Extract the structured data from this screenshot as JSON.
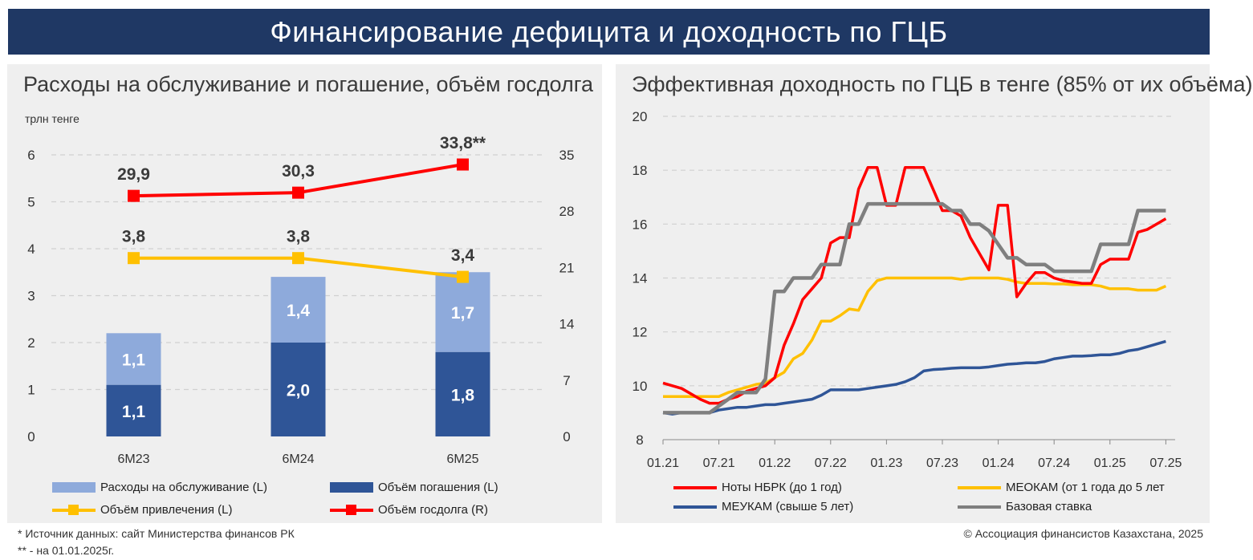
{
  "header": {
    "title": "Финансирование дефицита и доходность по ГЦБ"
  },
  "colors": {
    "banner": "#1f3864",
    "service": "#8eaadb",
    "repay": "#2f5597",
    "borrow": "#ffc000",
    "debt": "#ff0000",
    "notes": "#ff0000",
    "meokam": "#ffc000",
    "meukam": "#2f5597",
    "base": "#7f7f7f"
  },
  "left_panel": {
    "title": "Расходы на обслуживание и погашение, объём госдолга",
    "units": "трлн тенге",
    "legend": {
      "service": "Расходы на обслуживание (L)",
      "repay": "Объём погашения (L)",
      "borrow": "Объём привлечения (L)",
      "debt": "Объём госдолга (R)"
    }
  },
  "right_panel": {
    "title": "Эффективная доходность по ГЦБ в тенге (85% от их объёма)",
    "legend": {
      "notes": "Ноты НБРК (до 1 год)",
      "meokam": "МЕОКАМ (от 1 года до 5 лет",
      "meukam": "МЕУКАМ (свыше 5 лет)",
      "base": "Базовая ставка"
    }
  },
  "footnotes": {
    "source": "* Источник данных: сайт Министерства финансов РК",
    "date_note": "** - на 01.01.2025г.",
    "copyright": "© Ассоциация финансистов Казахстана, 2025"
  },
  "chart_data": [
    {
      "type": "bar",
      "title": "Расходы на обслуживание и погашение, объём госдолга",
      "ylabel": "трлн тенге",
      "categories": [
        "6M23",
        "6M24",
        "6M25"
      ],
      "ylim": [
        0,
        6
      ],
      "yticks": [
        "0",
        "1",
        "2",
        "3",
        "4",
        "5",
        "6"
      ],
      "y2lim": [
        0,
        35
      ],
      "y2ticks": [
        "0",
        "7",
        "14",
        "21",
        "28",
        "35"
      ],
      "stacked_series": [
        {
          "name": "Объём погашения (L)",
          "values": [
            1.1,
            2.0,
            1.8
          ],
          "labels": [
            "1,1",
            "2,0",
            "1,8"
          ]
        },
        {
          "name": "Расходы на обслуживание (L)",
          "values": [
            1.1,
            1.4,
            1.7
          ],
          "labels": [
            "1,1",
            "1,4",
            "1,7"
          ]
        }
      ],
      "line_series": [
        {
          "name": "Объём привлечения (L)",
          "axis": "left",
          "values": [
            3.8,
            3.8,
            3.4
          ],
          "labels": [
            "3,8",
            "3,8",
            "3,4"
          ]
        },
        {
          "name": "Объём госдолга (R)",
          "axis": "right",
          "values": [
            29.9,
            30.3,
            33.8
          ],
          "labels": [
            "29,9",
            "30,3",
            "33,8**"
          ]
        }
      ]
    },
    {
      "type": "line",
      "title": "Эффективная доходность по ГЦБ в тенге (85% от их объёма)",
      "xlabels": [
        "01.21",
        "07.21",
        "01.22",
        "07.22",
        "01.23",
        "07.23",
        "01.24",
        "07.24",
        "01.25",
        "07.25"
      ],
      "xlim": [
        0,
        55
      ],
      "ylim": [
        8,
        20
      ],
      "yticks": [
        "8",
        "10",
        "12",
        "14",
        "16",
        "18",
        "20"
      ],
      "series": [
        {
          "name": "Ноты НБРК (до 1 год)",
          "x": [
            0,
            1,
            2,
            3,
            4,
            5,
            6,
            7,
            8,
            9,
            10,
            11,
            12,
            13,
            14,
            15,
            16,
            17,
            18,
            19,
            20,
            21,
            22,
            23,
            24,
            25,
            26,
            27,
            28,
            29,
            30,
            31,
            32,
            33,
            34,
            35,
            36,
            37,
            38,
            39,
            40,
            41,
            42,
            43,
            44,
            45,
            46,
            47,
            48,
            49,
            50,
            51,
            52,
            53,
            54
          ],
          "values": [
            10.1,
            10.0,
            9.9,
            9.7,
            9.5,
            9.35,
            9.35,
            9.5,
            9.6,
            9.8,
            9.9,
            10.0,
            10.3,
            11.5,
            12.3,
            13.2,
            13.6,
            14.0,
            15.3,
            15.5,
            15.5,
            17.3,
            18.1,
            18.1,
            16.7,
            16.7,
            18.1,
            18.1,
            18.1,
            17.3,
            16.5,
            16.5,
            16.3,
            15.5,
            14.9,
            14.3,
            16.7,
            16.7,
            13.3,
            13.8,
            14.2,
            14.2,
            14.0,
            13.9,
            13.85,
            13.8,
            13.8,
            14.5,
            14.7,
            14.7,
            14.7,
            15.7,
            15.8,
            16.0,
            16.2
          ]
        },
        {
          "name": "МЕОКАМ (от 1 года до 5 лет",
          "x": [
            0,
            1,
            2,
            3,
            4,
            5,
            6,
            7,
            8,
            9,
            10,
            11,
            12,
            13,
            14,
            15,
            16,
            17,
            18,
            19,
            20,
            21,
            22,
            23,
            24,
            25,
            26,
            27,
            28,
            29,
            30,
            31,
            32,
            33,
            34,
            35,
            36,
            37,
            38,
            39,
            40,
            41,
            42,
            43,
            44,
            45,
            46,
            47,
            48,
            49,
            50,
            51,
            52,
            53,
            54
          ],
          "values": [
            9.6,
            9.6,
            9.6,
            9.6,
            9.6,
            9.6,
            9.6,
            9.75,
            9.85,
            9.95,
            10.05,
            10.1,
            10.3,
            10.5,
            11.0,
            11.2,
            11.7,
            12.4,
            12.4,
            12.6,
            12.85,
            12.8,
            13.5,
            13.9,
            14.0,
            14.0,
            14.0,
            14.0,
            14.0,
            14.0,
            14.0,
            14.0,
            13.95,
            14.0,
            14.0,
            14.0,
            14.0,
            13.95,
            13.85,
            13.8,
            13.8,
            13.8,
            13.78,
            13.78,
            13.75,
            13.75,
            13.75,
            13.7,
            13.6,
            13.6,
            13.6,
            13.55,
            13.55,
            13.55,
            13.7
          ]
        },
        {
          "name": "МЕУКАМ (свыше 5 лет)",
          "x": [
            0,
            1,
            2,
            3,
            4,
            5,
            6,
            7,
            8,
            9,
            10,
            11,
            12,
            13,
            14,
            15,
            16,
            17,
            18,
            19,
            20,
            21,
            22,
            23,
            24,
            25,
            26,
            27,
            28,
            29,
            30,
            31,
            32,
            33,
            34,
            35,
            36,
            37,
            38,
            39,
            40,
            41,
            42,
            43,
            44,
            45,
            46,
            47,
            48,
            49,
            50,
            51,
            52,
            53,
            54
          ],
          "values": [
            9.0,
            8.95,
            9.0,
            9.0,
            9.0,
            9.0,
            9.1,
            9.15,
            9.2,
            9.2,
            9.25,
            9.3,
            9.3,
            9.35,
            9.4,
            9.45,
            9.5,
            9.65,
            9.85,
            9.85,
            9.85,
            9.85,
            9.9,
            9.95,
            10.0,
            10.05,
            10.15,
            10.3,
            10.55,
            10.6,
            10.62,
            10.65,
            10.67,
            10.67,
            10.67,
            10.7,
            10.75,
            10.8,
            10.82,
            10.85,
            10.85,
            10.9,
            11.0,
            11.05,
            11.1,
            11.1,
            11.12,
            11.15,
            11.15,
            11.2,
            11.3,
            11.35,
            11.45,
            11.55,
            11.65
          ]
        },
        {
          "name": "Базовая ставка",
          "x": [
            0,
            1,
            2,
            3,
            4,
            5,
            6,
            7,
            8,
            9,
            10,
            11,
            12,
            13,
            14,
            15,
            16,
            17,
            18,
            19,
            20,
            21,
            22,
            23,
            24,
            25,
            26,
            27,
            28,
            29,
            30,
            31,
            32,
            33,
            34,
            35,
            36,
            37,
            38,
            39,
            40,
            41,
            42,
            43,
            44,
            45,
            46,
            47,
            48,
            49,
            50,
            51,
            52,
            53,
            54
          ],
          "values": [
            9.0,
            9.0,
            9.0,
            9.0,
            9.0,
            9.0,
            9.25,
            9.5,
            9.75,
            9.75,
            9.75,
            10.25,
            13.5,
            13.5,
            14.0,
            14.0,
            14.0,
            14.5,
            14.5,
            14.5,
            16.0,
            16.0,
            16.75,
            16.75,
            16.75,
            16.75,
            16.75,
            16.75,
            16.75,
            16.75,
            16.75,
            16.5,
            16.5,
            16.0,
            16.0,
            15.75,
            15.25,
            14.75,
            14.75,
            14.5,
            14.5,
            14.5,
            14.25,
            14.25,
            14.25,
            14.25,
            14.25,
            15.25,
            15.25,
            15.25,
            15.25,
            16.5,
            16.5,
            16.5,
            16.5
          ]
        }
      ]
    }
  ]
}
